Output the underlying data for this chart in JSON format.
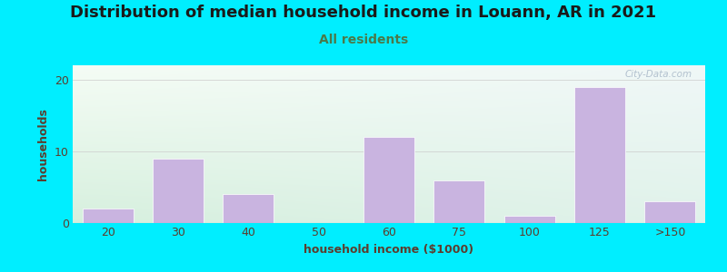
{
  "title": "Distribution of median household income in Louann, AR in 2021",
  "subtitle": "All residents",
  "xlabel": "household income ($1000)",
  "ylabel": "households",
  "categories": [
    "20",
    "30",
    "40",
    "50",
    "60",
    "75",
    "100",
    "125",
    ">150"
  ],
  "values": [
    2,
    9,
    4,
    0,
    12,
    6,
    1,
    19,
    3
  ],
  "bar_color": "#c9b4e0",
  "bar_edgecolor": "#c9b4e0",
  "background_outer": "#00eeff",
  "plot_bg_top": "#f0f8f0",
  "plot_bg_bottom": "#d0ead8",
  "plot_bg_right": "#e8f4f8",
  "ylim": [
    0,
    22
  ],
  "yticks": [
    0,
    10,
    20
  ],
  "title_fontsize": 13,
  "subtitle_fontsize": 10,
  "label_fontsize": 9,
  "tick_fontsize": 9,
  "title_color": "#1a1a1a",
  "subtitle_color": "#4a7a4a",
  "axis_label_color": "#5c3d2e",
  "tick_color": "#5c3d2e",
  "watermark_text": "City-Data.com",
  "watermark_color": "#a8b8c8"
}
